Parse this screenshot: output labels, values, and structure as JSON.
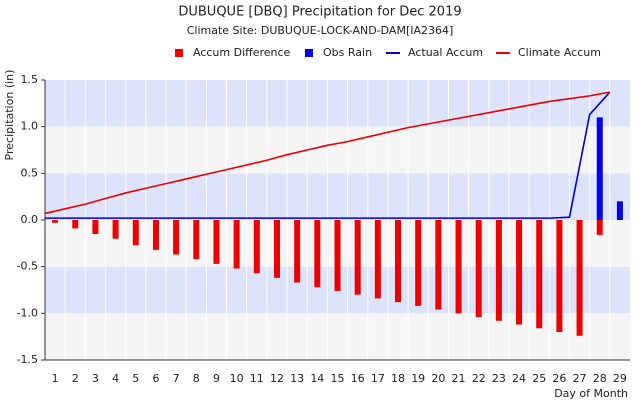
{
  "chart_data": {
    "type": "combo",
    "title": "DUBUQUE [DBQ] Precipitation for Dec 2019",
    "subtitle": "Climate Site: DUBUQUE-LOCK-AND-DAM[IA2364]",
    "y_label": "Precipitation (in)",
    "x_label": "Day of Month",
    "categories": [
      "1",
      "2",
      "3",
      "4",
      "5",
      "6",
      "7",
      "8",
      "9",
      "10",
      "11",
      "12",
      "13",
      "14",
      "15",
      "16",
      "17",
      "18",
      "19",
      "20",
      "21",
      "22",
      "23",
      "24",
      "25",
      "26",
      "27",
      "28",
      "29"
    ],
    "series": [
      {
        "name": "Accum Difference",
        "type": "bar",
        "color": "#ee0000",
        "values": [
          -0.03,
          -0.09,
          -0.15,
          -0.2,
          -0.27,
          -0.32,
          -0.37,
          -0.42,
          -0.47,
          -0.52,
          -0.57,
          -0.62,
          -0.67,
          -0.72,
          -0.76,
          -0.8,
          -0.84,
          -0.88,
          -0.92,
          -0.96,
          -1.0,
          -1.04,
          -1.08,
          -1.12,
          -1.16,
          -1.2,
          -1.24,
          -0.16,
          null
        ]
      },
      {
        "name": "Obs Rain",
        "type": "bar",
        "color": "#0000ee",
        "values": [
          0,
          0,
          0,
          0,
          0,
          0,
          0,
          0,
          0,
          0,
          0,
          0,
          0,
          0,
          0,
          0,
          0,
          0,
          0,
          0,
          0,
          0,
          0,
          0,
          0,
          0,
          0,
          1.1,
          0.2
        ]
      },
      {
        "name": "Actual Accum",
        "type": "line",
        "color": "#0000dd",
        "values": [
          0.02,
          0.02,
          0.02,
          0.02,
          0.02,
          0.02,
          0.02,
          0.02,
          0.02,
          0.02,
          0.02,
          0.02,
          0.02,
          0.02,
          0.02,
          0.02,
          0.02,
          0.02,
          0.02,
          0.02,
          0.02,
          0.02,
          0.02,
          0.02,
          0.02,
          0.02,
          0.03,
          1.13,
          1.37
        ]
      },
      {
        "name": "Climate Accum",
        "type": "line",
        "color": "#ee0000",
        "values": [
          0.07,
          0.12,
          0.17,
          0.23,
          0.29,
          0.34,
          0.39,
          0.44,
          0.49,
          0.54,
          0.59,
          0.64,
          0.7,
          0.75,
          0.8,
          0.84,
          0.89,
          0.94,
          0.99,
          1.03,
          1.07,
          1.11,
          1.15,
          1.19,
          1.23,
          1.27,
          1.3,
          1.33,
          1.37
        ]
      }
    ],
    "ylim": [
      -1.5,
      1.5
    ],
    "yticks": [
      1.5,
      {
        "value": 1.0,
        "label": "1.0"
      },
      0.5,
      {
        "value": 0.0,
        "label": "0.0"
      },
      -0.5,
      {
        "value": -1.0,
        "label": "-1.0"
      },
      -1.5
    ],
    "band_colors": [
      "#dde3fb",
      "#f5f5f5"
    ]
  }
}
